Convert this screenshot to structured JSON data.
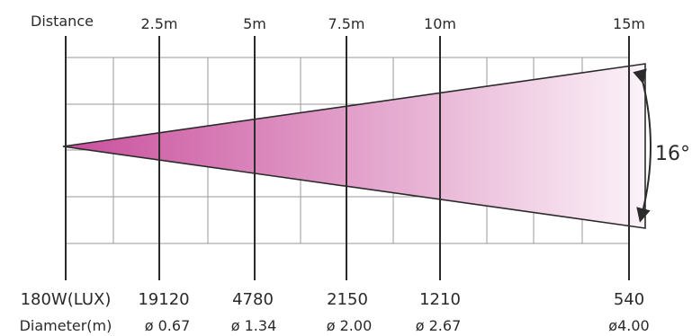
{
  "header_label": "Distance",
  "distances": [
    "2.5m",
    "5m",
    "7.5m",
    "10m",
    "15m"
  ],
  "beam_angle": "16°",
  "lux": {
    "label": "180W(LUX)",
    "values": [
      "19120",
      "4780",
      "2150",
      "1210",
      "540"
    ]
  },
  "diameter": {
    "label": "Diameter(m)",
    "values": [
      "ø 0.67",
      "ø 1.34",
      "ø 2.00",
      "ø 2.67",
      "ø4.00"
    ]
  },
  "colors": {
    "beam_start": "#c94f9c",
    "beam_end": "#fbf2f8",
    "grid": "#9a9a9a",
    "axis": "#2b2b2b"
  }
}
